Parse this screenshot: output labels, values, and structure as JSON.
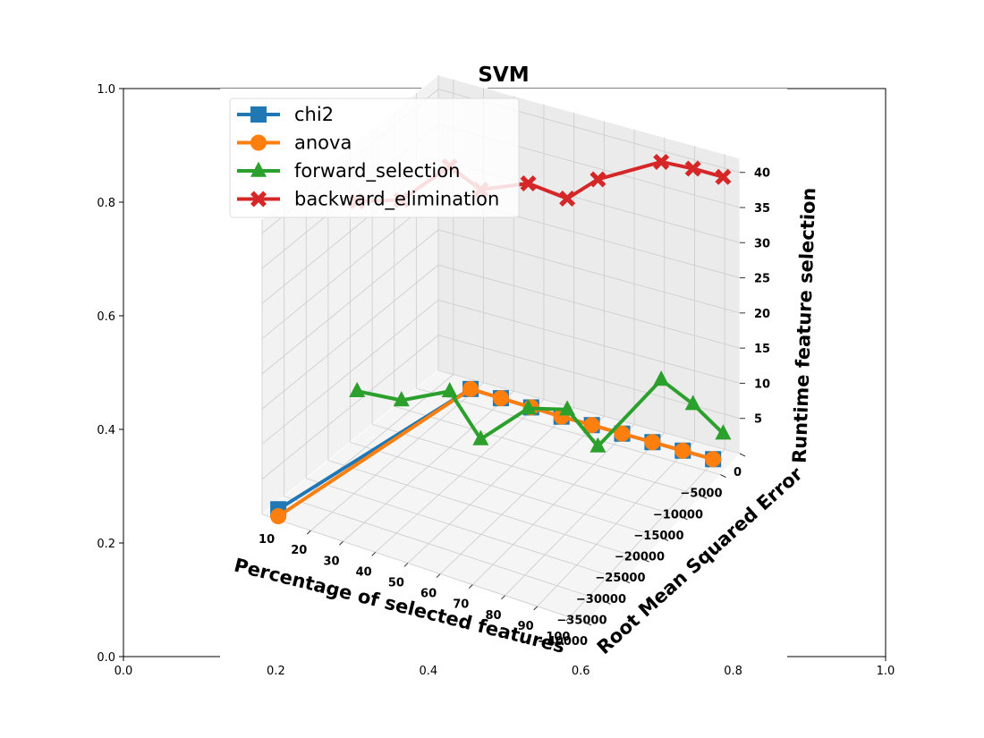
{
  "chart_data": {
    "type": "line3d",
    "title": "SVM",
    "xlabel": "Percentage of selected features",
    "ylabel": "Root Mean Squared Error",
    "zlabel": "Runtime feature selection",
    "xticks": [
      "10",
      "20",
      "30",
      "40",
      "50",
      "60",
      "70",
      "80",
      "90",
      "100"
    ],
    "yticks": [
      "0",
      "−5000",
      "−10000",
      "−15000",
      "−20000",
      "−25000",
      "−30000",
      "−35000",
      "−40000"
    ],
    "zticks": [
      "5",
      "10",
      "15",
      "20",
      "25",
      "30",
      "35",
      "40"
    ],
    "xlim": [
      5,
      105
    ],
    "ylim": [
      -40000,
      0
    ],
    "zlim": [
      0,
      42
    ],
    "outer_axes": {
      "xticks": [
        "0.0",
        "0.2",
        "0.4",
        "0.6",
        "0.8",
        "1.0"
      ],
      "yticks": [
        "0.0",
        "0.2",
        "0.4",
        "0.6",
        "0.8",
        "1.0"
      ]
    },
    "legend_position": "upper-left",
    "grid": true,
    "series": [
      {
        "name": "chi2",
        "color": "#1f77b4",
        "marker": "square",
        "x": [
          10,
          20,
          30,
          40,
          50,
          60,
          70,
          80,
          90,
          100
        ],
        "y": [
          -40000,
          -3000,
          -3000,
          -3000,
          -3000,
          -3000,
          -3000,
          -3000,
          -3000,
          -3000
        ],
        "z": [
          1.5,
          0.7,
          0.6,
          0.5,
          0.4,
          0.4,
          0.4,
          0.4,
          0.4,
          0.4
        ]
      },
      {
        "name": "anova",
        "color": "#ff7f0e",
        "marker": "circle",
        "x": [
          10,
          20,
          30,
          40,
          50,
          60,
          70,
          80,
          90,
          100
        ],
        "y": [
          -40000,
          -3000,
          -3000,
          -3000,
          -3000,
          -3000,
          -3000,
          -3000,
          -3000,
          -3000
        ],
        "z": [
          0.5,
          0.7,
          0.6,
          0.5,
          0.4,
          0.4,
          0.4,
          0.4,
          0.4,
          0.4
        ]
      },
      {
        "name": "forward_selection",
        "color": "#2ca02c",
        "marker": "triangle",
        "x": [
          10,
          20,
          30,
          40,
          50,
          60,
          70,
          80,
          90,
          100
        ],
        "y": [
          -22000,
          -19000,
          -15000,
          -15000,
          -11000,
          -9000,
          -9000,
          -800,
          -400,
          -400
        ],
        "z": [
          9,
          7.5,
          8,
          2.5,
          6,
          6,
          2,
          8,
          5.5,
          2.5
        ]
      },
      {
        "name": "backward_elimination",
        "color": "#d62728",
        "marker": "x",
        "x": [
          10,
          20,
          30,
          40,
          50,
          60,
          70,
          80,
          90,
          100
        ],
        "y": [
          -22000,
          -19000,
          -15000,
          -15000,
          -11000,
          -9000,
          -9000,
          -800,
          -400,
          -400
        ],
        "z": [
          36,
          36,
          40,
          38,
          38,
          36,
          40,
          39,
          39,
          39
        ]
      }
    ]
  }
}
